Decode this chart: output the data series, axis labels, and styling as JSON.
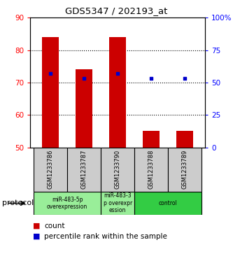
{
  "title": "GDS5347 / 202193_at",
  "samples": [
    "GSM1233786",
    "GSM1233787",
    "GSM1233790",
    "GSM1233788",
    "GSM1233789"
  ],
  "counts": [
    84.0,
    74.0,
    84.0,
    55.0,
    55.0
  ],
  "percentiles": [
    57,
    53,
    57,
    53,
    53
  ],
  "bar_bottom": 50,
  "ylim": [
    50,
    90
  ],
  "yticks": [
    50,
    60,
    70,
    80,
    90
  ],
  "right_ylim": [
    0,
    100
  ],
  "right_yticks": [
    0,
    25,
    50,
    75,
    100
  ],
  "right_yticklabels": [
    "0",
    "25",
    "50",
    "75",
    "100%"
  ],
  "bar_color": "#cc0000",
  "dot_color": "#0000cc",
  "groups": [
    {
      "label": "miR-483-5p\noverexpression",
      "indices": [
        0,
        1
      ],
      "color": "#99ee99"
    },
    {
      "label": "miR-483-3\np overexpr\nession",
      "indices": [
        2
      ],
      "color": "#99ee99"
    },
    {
      "label": "control",
      "indices": [
        3,
        4
      ],
      "color": "#33cc44"
    }
  ],
  "protocol_label": "protocol",
  "legend_count_label": "count",
  "legend_percentile_label": "percentile rank within the sample",
  "sample_box_color": "#cccccc",
  "grid_yticks": [
    60,
    70,
    80
  ]
}
